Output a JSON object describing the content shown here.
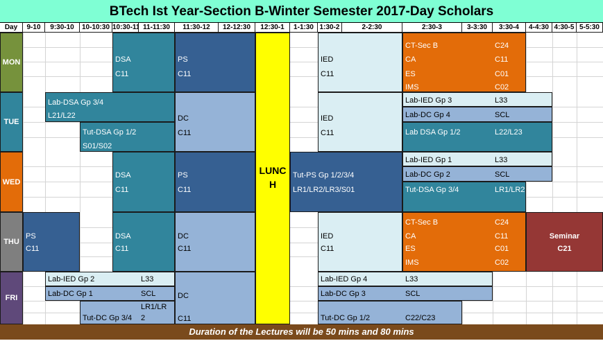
{
  "title": "BTech Ist Year-Section B-Winter Semester 2017-Day Scholars",
  "header": [
    "Day",
    "9-10",
    "9:30-10",
    "10-10:30",
    "10:30-11",
    "11-11:30",
    "11:30-12",
    "12-12:30",
    "12:30-1",
    "1-1:30",
    "1:30-2",
    "2-2:30",
    "2:30-3",
    "3-3:30",
    "3:30-4",
    "4-4:30",
    "4:30-5",
    "5-5:30"
  ],
  "days": {
    "mon": "MON",
    "tue": "TUE",
    "wed": "WED",
    "thu": "THU",
    "fri": "FRI"
  },
  "lunch": {
    "line1": "LUNC",
    "line2": "H"
  },
  "mon": {
    "dsa": {
      "subject": "DSA",
      "room": "C11"
    },
    "ps": {
      "subject": "PS",
      "room": "C11"
    },
    "ied": {
      "subject": "IED",
      "room": "C11"
    },
    "evening": {
      "s1": "CT-Sec B",
      "r1": "C24",
      "s2": "CA",
      "r2": "C11",
      "s3": "ES",
      "r3": "C01",
      "s4": "IMS",
      "r4": "C02"
    }
  },
  "tue": {
    "lab_dsa": {
      "subject": "Lab-DSA Gp 3/4",
      "room": "L21/L22"
    },
    "tut_dsa": {
      "subject": "Tut-DSA Gp 1/2",
      "room": "S01/S02"
    },
    "dc": {
      "subject": "DC",
      "room": "C11"
    },
    "ied": {
      "subject": "IED",
      "room": "C11"
    },
    "lab_ied": {
      "subject": "Lab-IED Gp 3",
      "room": "L33"
    },
    "lab_dc": {
      "subject": "Lab-DC Gp 4",
      "room": "SCL"
    },
    "lab_dsa2": {
      "subject": "Lab DSA Gp 1/2",
      "room": "L22/L23"
    }
  },
  "wed": {
    "dsa": {
      "subject": "DSA",
      "room": "C11"
    },
    "ps": {
      "subject": "PS",
      "room": "C11"
    },
    "tut_ps": {
      "subject": "Tut-PS Gp 1/2/3/4",
      "room": "LR1/LR2/LR3/S01"
    },
    "lab_ied": {
      "subject": "Lab-IED Gp 1",
      "room": "L33"
    },
    "lab_dc": {
      "subject": "Lab-DC Gp 2",
      "room": "SCL"
    },
    "tut_dsa": {
      "subject": "Tut-DSA Gp 3/4",
      "room": "LR1/LR2"
    }
  },
  "thu": {
    "ps": {
      "subject": "PS",
      "room": "C11"
    },
    "dsa": {
      "subject": "DSA",
      "room": "C11"
    },
    "dc": {
      "subject": "DC",
      "room": "C11"
    },
    "ied": {
      "subject": "IED",
      "room": "C11"
    },
    "evening": {
      "s1": "CT-Sec B",
      "r1": "C24",
      "s2": "CA",
      "r2": "C11",
      "s3": "ES",
      "r3": "C01",
      "s4": "IMS",
      "r4": "C02"
    },
    "seminar": {
      "subject": "Seminar",
      "room": "C21"
    }
  },
  "fri": {
    "lab_ied": {
      "subject": "Lab-IED Gp 2",
      "room": "L33"
    },
    "lab_dc": {
      "subject": "Lab-DC Gp 1",
      "room": "SCL"
    },
    "tut_dc": {
      "subject": "Tut-DC Gp 3/4",
      "room1": "LR1/LR",
      "room2": "2"
    },
    "dc": {
      "subject": "DC",
      "room": "C11"
    },
    "lab_ied2": {
      "subject": "Lab-IED Gp 4",
      "room": "L33"
    },
    "lab_dc2": {
      "subject": "Lab-DC Gp 3",
      "room": "SCL"
    },
    "tut_dc2": {
      "subject": "Tut-DC Gp 1/2",
      "room": "C22/C23"
    }
  },
  "footer": "Duration of the Lectures will be 50 mins and 80 mins",
  "colors": {
    "title_bg": "#7fffd4",
    "teal": "#31859c",
    "navy": "#366092",
    "light_blue": "#95b3d7",
    "pale_blue": "#daeef3",
    "orange": "#e36c09",
    "maroon": "#953735",
    "mon": "#76923c",
    "tue": "#31859c",
    "wed": "#e36c09",
    "thu": "#7f7f7f",
    "fri": "#5f497a",
    "lunch": "#ffff00",
    "footer": "#7a4a1c"
  }
}
